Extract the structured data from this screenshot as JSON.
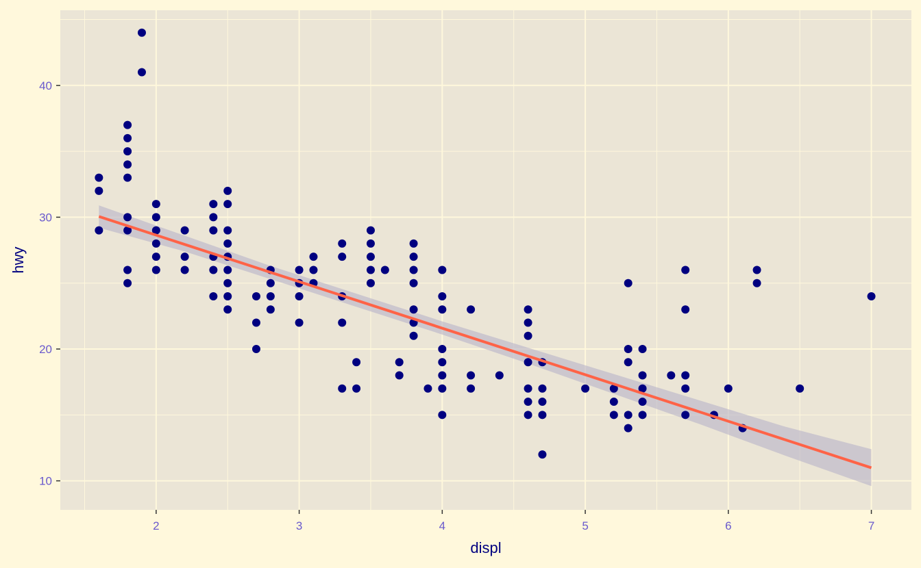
{
  "chart_data": {
    "type": "scatter",
    "title": "",
    "xlabel": "displ",
    "ylabel": "hwy",
    "xlim": [
      1.33,
      7.28
    ],
    "ylim": [
      7.8,
      45.7
    ],
    "x_ticks": [
      2,
      3,
      4,
      5,
      6,
      7
    ],
    "y_ticks": [
      10,
      20,
      30,
      40
    ],
    "grid": true,
    "legend": "none",
    "colors": {
      "background": "#FFF8DC",
      "panel": "#EBE5D6",
      "grid": "#FFF8DC",
      "points": "#000080",
      "smooth_line": "#FF6347",
      "ribbon": "#B8B3C8",
      "tick_labels": "#6A5ACD",
      "axis_titles": "#000080"
    },
    "points": [
      [
        1.6,
        33
      ],
      [
        1.6,
        32
      ],
      [
        1.6,
        29
      ],
      [
        1.8,
        37
      ],
      [
        1.8,
        36
      ],
      [
        1.8,
        35
      ],
      [
        1.8,
        34
      ],
      [
        1.8,
        33
      ],
      [
        1.8,
        30
      ],
      [
        1.8,
        29
      ],
      [
        1.8,
        26
      ],
      [
        1.8,
        25
      ],
      [
        1.9,
        44
      ],
      [
        1.9,
        41
      ],
      [
        2.0,
        31
      ],
      [
        2.0,
        30
      ],
      [
        2.0,
        29
      ],
      [
        2.0,
        28
      ],
      [
        2.0,
        27
      ],
      [
        2.0,
        26
      ],
      [
        2.2,
        29
      ],
      [
        2.2,
        27
      ],
      [
        2.2,
        26
      ],
      [
        2.4,
        31
      ],
      [
        2.4,
        30
      ],
      [
        2.4,
        29
      ],
      [
        2.4,
        27
      ],
      [
        2.4,
        26
      ],
      [
        2.4,
        24
      ],
      [
        2.5,
        32
      ],
      [
        2.5,
        31
      ],
      [
        2.5,
        29
      ],
      [
        2.5,
        28
      ],
      [
        2.5,
        27
      ],
      [
        2.5,
        26
      ],
      [
        2.5,
        25
      ],
      [
        2.5,
        24
      ],
      [
        2.5,
        23
      ],
      [
        2.7,
        24
      ],
      [
        2.7,
        22
      ],
      [
        2.7,
        20
      ],
      [
        2.8,
        26
      ],
      [
        2.8,
        25
      ],
      [
        2.8,
        24
      ],
      [
        2.8,
        23
      ],
      [
        3.0,
        26
      ],
      [
        3.0,
        25
      ],
      [
        3.0,
        24
      ],
      [
        3.0,
        22
      ],
      [
        3.1,
        27
      ],
      [
        3.1,
        26
      ],
      [
        3.1,
        25
      ],
      [
        3.3,
        28
      ],
      [
        3.3,
        27
      ],
      [
        3.3,
        24
      ],
      [
        3.3,
        22
      ],
      [
        3.3,
        17
      ],
      [
        3.4,
        19
      ],
      [
        3.4,
        17
      ],
      [
        3.5,
        29
      ],
      [
        3.5,
        28
      ],
      [
        3.5,
        27
      ],
      [
        3.5,
        26
      ],
      [
        3.5,
        25
      ],
      [
        3.6,
        26
      ],
      [
        3.7,
        19
      ],
      [
        3.7,
        18
      ],
      [
        3.8,
        28
      ],
      [
        3.8,
        27
      ],
      [
        3.8,
        26
      ],
      [
        3.8,
        25
      ],
      [
        3.8,
        23
      ],
      [
        3.8,
        22
      ],
      [
        3.8,
        21
      ],
      [
        3.9,
        17
      ],
      [
        4.0,
        26
      ],
      [
        4.0,
        24
      ],
      [
        4.0,
        23
      ],
      [
        4.0,
        20
      ],
      [
        4.0,
        19
      ],
      [
        4.0,
        18
      ],
      [
        4.0,
        17
      ],
      [
        4.0,
        15
      ],
      [
        4.2,
        23
      ],
      [
        4.2,
        18
      ],
      [
        4.2,
        17
      ],
      [
        4.4,
        18
      ],
      [
        4.6,
        23
      ],
      [
        4.6,
        22
      ],
      [
        4.6,
        21
      ],
      [
        4.6,
        19
      ],
      [
        4.6,
        17
      ],
      [
        4.6,
        16
      ],
      [
        4.6,
        15
      ],
      [
        4.7,
        19
      ],
      [
        4.7,
        17
      ],
      [
        4.7,
        16
      ],
      [
        4.7,
        15
      ],
      [
        4.7,
        12
      ],
      [
        5.0,
        17
      ],
      [
        5.2,
        17
      ],
      [
        5.2,
        16
      ],
      [
        5.2,
        15
      ],
      [
        5.3,
        25
      ],
      [
        5.3,
        20
      ],
      [
        5.3,
        19
      ],
      [
        5.3,
        15
      ],
      [
        5.3,
        14
      ],
      [
        5.4,
        20
      ],
      [
        5.4,
        18
      ],
      [
        5.4,
        17
      ],
      [
        5.4,
        16
      ],
      [
        5.4,
        15
      ],
      [
        5.6,
        18
      ],
      [
        5.7,
        26
      ],
      [
        5.7,
        23
      ],
      [
        5.7,
        18
      ],
      [
        5.7,
        17
      ],
      [
        5.7,
        15
      ],
      [
        5.9,
        15
      ],
      [
        6.0,
        17
      ],
      [
        6.1,
        14
      ],
      [
        6.2,
        26
      ],
      [
        6.2,
        25
      ],
      [
        6.5,
        17
      ],
      [
        7.0,
        24
      ]
    ],
    "smooth": {
      "method": "lm",
      "intercept": 35.7,
      "slope": -3.53,
      "x": [
        1.6,
        2.2,
        2.8,
        3.4,
        4.0,
        4.6,
        5.2,
        5.8,
        6.4,
        7.0
      ],
      "ymin": [
        29.2,
        27.4,
        25.3,
        23.2,
        21.1,
        18.9,
        16.6,
        14.3,
        11.9,
        9.6
      ],
      "ymax": [
        30.9,
        28.6,
        26.3,
        24.2,
        22.1,
        20.1,
        18.1,
        16.1,
        14.1,
        12.4
      ]
    }
  }
}
